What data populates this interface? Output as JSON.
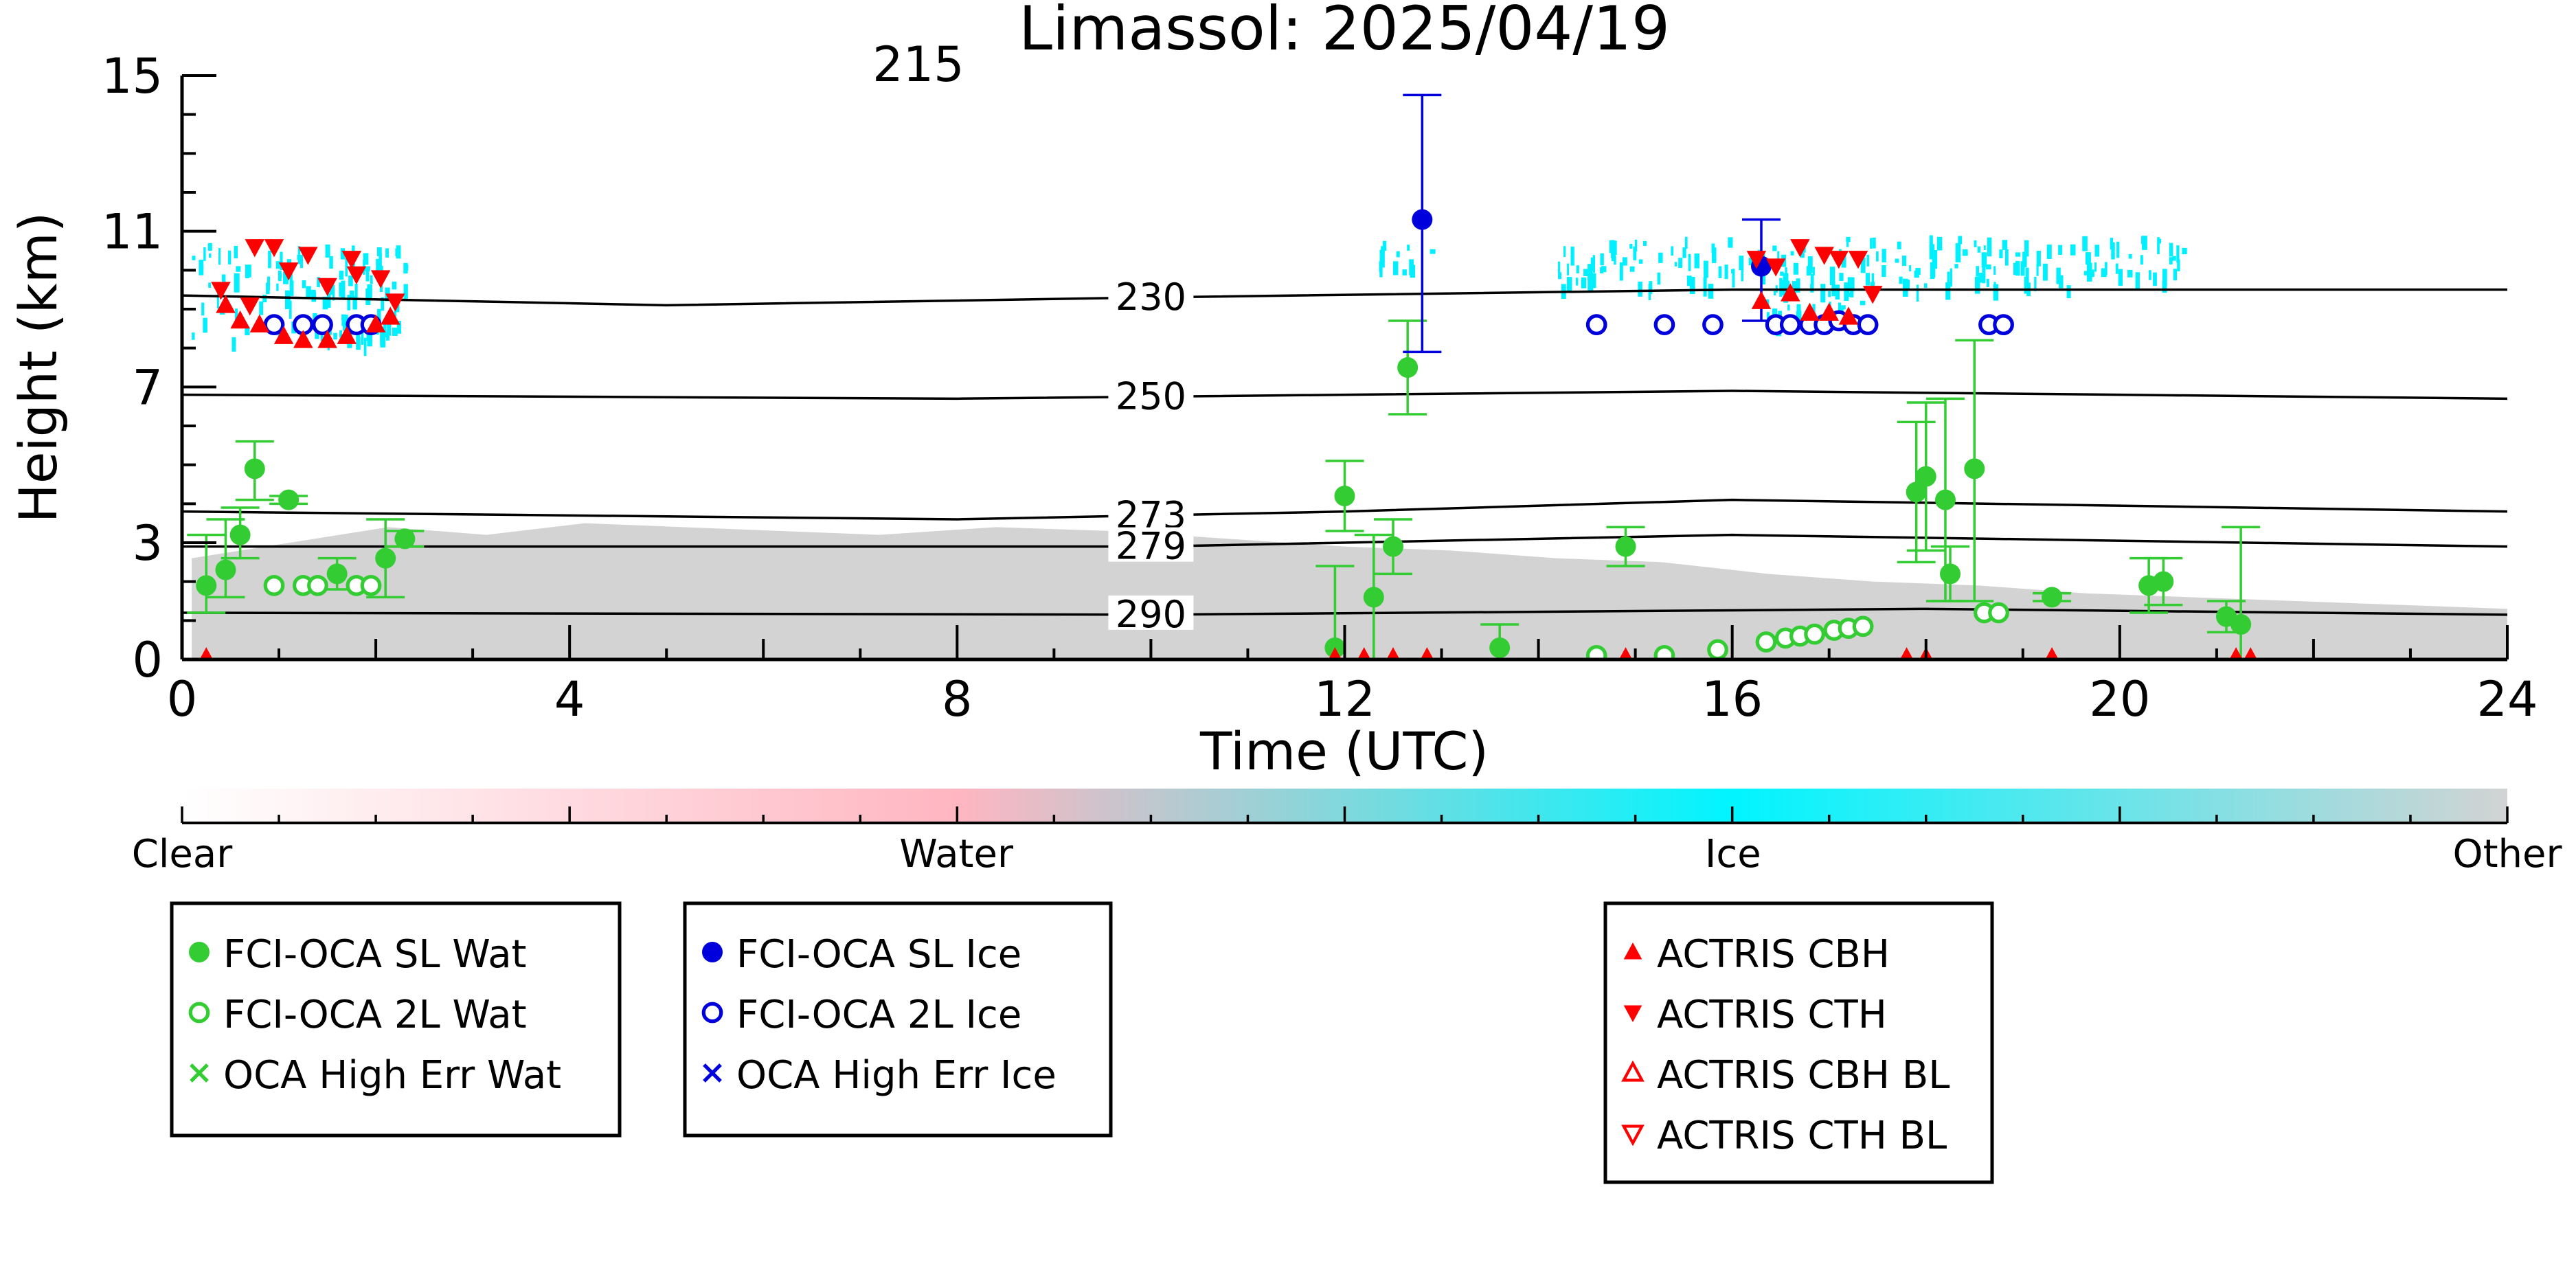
{
  "chart_data": {
    "type": "scatter",
    "title": "Limassol: 2025/04/19",
    "xlabel": "Time (UTC)",
    "ylabel": "Height (km)",
    "xlim": [
      0,
      24
    ],
    "ylim": [
      0,
      15
    ],
    "xticks": [
      "0",
      "4",
      "8",
      "12",
      "16",
      "20",
      "24"
    ],
    "yticks": [
      "0",
      "3",
      "7",
      "11",
      "15"
    ],
    "yticks_values": [
      0,
      3,
      7,
      11,
      15
    ],
    "grid": false,
    "colors": {
      "fci_water": "#33cc33",
      "fci_ice": "#0000dd",
      "actris": "#ff0000",
      "cloud_ice": "#00f0ff",
      "other": "#d3d3d3",
      "isotherm": "#000000"
    },
    "isotherms": [
      {
        "label": "230",
        "label_x": 10.0,
        "points": [
          [
            0,
            9.35
          ],
          [
            5,
            9.1
          ],
          [
            10,
            9.3
          ],
          [
            16,
            9.5
          ],
          [
            24,
            9.5
          ]
        ]
      },
      {
        "label": "250",
        "label_x": 10.0,
        "points": [
          [
            0,
            6.8
          ],
          [
            8,
            6.7
          ],
          [
            16,
            6.9
          ],
          [
            24,
            6.7
          ]
        ]
      },
      {
        "label": "273",
        "label_x": 10.0,
        "points": [
          [
            0,
            3.8
          ],
          [
            8,
            3.6
          ],
          [
            12,
            3.8
          ],
          [
            16,
            4.1
          ],
          [
            24,
            3.8
          ]
        ]
      },
      {
        "label": "279",
        "label_x": 10.0,
        "points": [
          [
            0,
            2.9
          ],
          [
            10,
            2.9
          ],
          [
            16,
            3.2
          ],
          [
            24,
            2.9
          ]
        ]
      },
      {
        "label": "290",
        "label_x": 10.0,
        "points": [
          [
            0,
            1.2
          ],
          [
            10,
            1.15
          ],
          [
            18,
            1.3
          ],
          [
            24,
            1.15
          ]
        ]
      }
    ],
    "extra_label": {
      "text": "215",
      "x": 7.6,
      "y": 15.0
    },
    "background": {
      "other_regions": [
        {
          "x0": 0.1,
          "x1": 7.2,
          "top": [
            2.6,
            3.0,
            3.4,
            3.2,
            3.5,
            3.4,
            3.3,
            3.2
          ]
        },
        {
          "x0": 7.2,
          "x1": 12.0,
          "top": [
            3.2,
            3.4,
            3.3,
            3.1,
            2.9
          ]
        },
        {
          "x0": 12.0,
          "x1": 24.0,
          "top": [
            2.9,
            2.8,
            2.6,
            2.5,
            2.2,
            2.0,
            1.9,
            1.7,
            1.6,
            1.5,
            1.4,
            1.3
          ]
        }
      ],
      "ice_regions": [
        {
          "x0": 0.1,
          "x1": 2.3,
          "y0": 8.2,
          "y1": 10.7
        },
        {
          "x0": 12.3,
          "x1": 12.9,
          "y0": 9.9,
          "y1": 10.8
        },
        {
          "x0": 14.2,
          "x1": 20.7,
          "y0": 9.6,
          "y1": 10.9
        },
        {
          "x0": 16.3,
          "x1": 17.4,
          "y0": 8.6,
          "y1": 10.1
        }
      ]
    },
    "series": [
      {
        "name": "FCI-OCA SL Wat",
        "marker": "filled-circle",
        "color": "#33cc33",
        "points": [
          {
            "x": 0.25,
            "y": 1.9,
            "ylo": 1.2,
            "yhi": 3.2
          },
          {
            "x": 0.45,
            "y": 2.3,
            "ylo": 1.6,
            "yhi": 3.6
          },
          {
            "x": 0.6,
            "y": 3.2,
            "ylo": 2.6,
            "yhi": 3.9
          },
          {
            "x": 0.75,
            "y": 4.9,
            "ylo": 4.1,
            "yhi": 5.6
          },
          {
            "x": 1.1,
            "y": 4.1,
            "ylo": 4.0,
            "yhi": 4.2
          },
          {
            "x": 1.6,
            "y": 2.2,
            "ylo": 1.8,
            "yhi": 2.6
          },
          {
            "x": 2.1,
            "y": 2.6,
            "ylo": 1.6,
            "yhi": 3.6
          },
          {
            "x": 2.3,
            "y": 3.1,
            "ylo": 2.9,
            "yhi": 3.3
          },
          {
            "x": 11.9,
            "y": 0.3,
            "ylo": 0.0,
            "yhi": 2.4
          },
          {
            "x": 12.0,
            "y": 4.2,
            "ylo": 3.3,
            "yhi": 5.1
          },
          {
            "x": 12.3,
            "y": 1.6,
            "ylo": 0.0,
            "yhi": 3.2
          },
          {
            "x": 12.5,
            "y": 2.9,
            "ylo": 2.2,
            "yhi": 3.6
          },
          {
            "x": 12.65,
            "y": 7.5,
            "ylo": 6.3,
            "yhi": 8.7
          },
          {
            "x": 13.6,
            "y": 0.3,
            "ylo": 0.0,
            "yhi": 0.9
          },
          {
            "x": 14.9,
            "y": 2.9,
            "ylo": 2.4,
            "yhi": 3.4
          },
          {
            "x": 17.9,
            "y": 4.3,
            "ylo": 2.5,
            "yhi": 6.1
          },
          {
            "x": 18.0,
            "y": 4.7,
            "ylo": 2.8,
            "yhi": 6.6
          },
          {
            "x": 18.2,
            "y": 4.1,
            "ylo": 1.5,
            "yhi": 6.7
          },
          {
            "x": 18.25,
            "y": 2.2,
            "ylo": 1.5,
            "yhi": 2.9
          },
          {
            "x": 18.5,
            "y": 4.9,
            "ylo": 1.5,
            "yhi": 8.2
          },
          {
            "x": 19.3,
            "y": 1.6,
            "ylo": 1.5,
            "yhi": 1.7
          },
          {
            "x": 20.3,
            "y": 1.9,
            "ylo": 1.2,
            "yhi": 2.6
          },
          {
            "x": 20.45,
            "y": 2.0,
            "ylo": 1.4,
            "yhi": 2.6
          },
          {
            "x": 21.1,
            "y": 1.1,
            "ylo": 0.7,
            "yhi": 1.5
          },
          {
            "x": 21.25,
            "y": 0.9,
            "ylo": 0.0,
            "yhi": 3.4
          }
        ]
      },
      {
        "name": "FCI-OCA 2L Wat",
        "marker": "open-circle",
        "color": "#33cc33",
        "points": [
          {
            "x": 0.95,
            "y": 1.9
          },
          {
            "x": 1.25,
            "y": 1.9
          },
          {
            "x": 1.4,
            "y": 1.9
          },
          {
            "x": 1.8,
            "y": 1.9
          },
          {
            "x": 1.95,
            "y": 1.9
          },
          {
            "x": 14.6,
            "y": 0.1
          },
          {
            "x": 15.3,
            "y": 0.1
          },
          {
            "x": 15.85,
            "y": 0.25
          },
          {
            "x": 16.35,
            "y": 0.45
          },
          {
            "x": 16.55,
            "y": 0.55
          },
          {
            "x": 16.7,
            "y": 0.6
          },
          {
            "x": 16.85,
            "y": 0.65
          },
          {
            "x": 17.05,
            "y": 0.75
          },
          {
            "x": 17.2,
            "y": 0.8
          },
          {
            "x": 17.35,
            "y": 0.85
          },
          {
            "x": 18.6,
            "y": 1.2
          },
          {
            "x": 18.75,
            "y": 1.2
          }
        ]
      },
      {
        "name": "OCA High Err Wat",
        "marker": "x",
        "color": "#33cc33",
        "points": []
      },
      {
        "name": "FCI-OCA SL Ice",
        "marker": "filled-circle",
        "color": "#0000dd",
        "points": [
          {
            "x": 12.8,
            "y": 11.3,
            "ylo": 7.9,
            "yhi": 14.5
          },
          {
            "x": 16.3,
            "y": 10.1,
            "ylo": 8.7,
            "yhi": 11.3
          }
        ]
      },
      {
        "name": "FCI-OCA 2L Ice",
        "marker": "open-circle",
        "color": "#0000dd",
        "points": [
          {
            "x": 0.95,
            "y": 8.6
          },
          {
            "x": 1.25,
            "y": 8.6
          },
          {
            "x": 1.45,
            "y": 8.6
          },
          {
            "x": 1.8,
            "y": 8.6
          },
          {
            "x": 1.95,
            "y": 8.6
          },
          {
            "x": 14.6,
            "y": 8.6
          },
          {
            "x": 15.3,
            "y": 8.6
          },
          {
            "x": 15.8,
            "y": 8.6
          },
          {
            "x": 16.45,
            "y": 8.6
          },
          {
            "x": 16.6,
            "y": 8.6
          },
          {
            "x": 16.8,
            "y": 8.6
          },
          {
            "x": 16.95,
            "y": 8.6
          },
          {
            "x": 17.1,
            "y": 8.7
          },
          {
            "x": 17.25,
            "y": 8.6
          },
          {
            "x": 17.4,
            "y": 8.6
          },
          {
            "x": 18.65,
            "y": 8.6
          },
          {
            "x": 18.8,
            "y": 8.6
          }
        ]
      },
      {
        "name": "OCA High Err Ice",
        "marker": "x",
        "color": "#0000dd",
        "points": []
      },
      {
        "name": "ACTRIS CBH",
        "marker": "triangle-up",
        "color": "#ff0000",
        "points": [
          {
            "x": 0.25,
            "y": 0.05
          },
          {
            "x": 11.9,
            "y": 0.05
          },
          {
            "x": 12.2,
            "y": 0.05
          },
          {
            "x": 12.5,
            "y": 0.05
          },
          {
            "x": 12.85,
            "y": 0.05
          },
          {
            "x": 14.9,
            "y": 0.05
          },
          {
            "x": 17.8,
            "y": 0.05
          },
          {
            "x": 18.0,
            "y": 0.05
          },
          {
            "x": 19.3,
            "y": 0.05
          },
          {
            "x": 21.2,
            "y": 0.05
          },
          {
            "x": 21.35,
            "y": 0.05
          },
          {
            "x": 0.45,
            "y": 9.1
          },
          {
            "x": 0.6,
            "y": 8.7
          },
          {
            "x": 0.8,
            "y": 8.6
          },
          {
            "x": 1.05,
            "y": 8.3
          },
          {
            "x": 1.25,
            "y": 8.2
          },
          {
            "x": 1.5,
            "y": 8.2
          },
          {
            "x": 1.7,
            "y": 8.3
          },
          {
            "x": 2.0,
            "y": 8.6
          },
          {
            "x": 2.15,
            "y": 8.8
          },
          {
            "x": 16.3,
            "y": 9.2
          },
          {
            "x": 16.6,
            "y": 9.4
          },
          {
            "x": 16.8,
            "y": 8.9
          },
          {
            "x": 17.0,
            "y": 8.9
          },
          {
            "x": 17.2,
            "y": 8.8
          }
        ]
      },
      {
        "name": "ACTRIS CTH",
        "marker": "triangle-down",
        "color": "#ff0000",
        "points": [
          {
            "x": 0.4,
            "y": 9.5
          },
          {
            "x": 0.7,
            "y": 9.1
          },
          {
            "x": 0.75,
            "y": 10.6
          },
          {
            "x": 0.95,
            "y": 10.6
          },
          {
            "x": 1.1,
            "y": 10.0
          },
          {
            "x": 1.3,
            "y": 10.4
          },
          {
            "x": 1.5,
            "y": 9.6
          },
          {
            "x": 1.75,
            "y": 10.3
          },
          {
            "x": 1.8,
            "y": 9.9
          },
          {
            "x": 2.05,
            "y": 9.8
          },
          {
            "x": 2.2,
            "y": 9.2
          },
          {
            "x": 16.25,
            "y": 10.3
          },
          {
            "x": 16.45,
            "y": 10.1
          },
          {
            "x": 16.7,
            "y": 10.6
          },
          {
            "x": 16.95,
            "y": 10.4
          },
          {
            "x": 17.1,
            "y": 10.3
          },
          {
            "x": 17.3,
            "y": 10.3
          },
          {
            "x": 17.45,
            "y": 9.4
          }
        ]
      },
      {
        "name": "ACTRIS CBH BL",
        "marker": "open-triangle-up",
        "color": "#ff0000",
        "points": []
      },
      {
        "name": "ACTRIS CTH BL",
        "marker": "open-triangle-down",
        "color": "#ff0000",
        "points": []
      }
    ],
    "colorbar": {
      "labels": [
        {
          "text": "Clear",
          "pos": 0.0
        },
        {
          "text": "Water",
          "pos": 0.333
        },
        {
          "text": "Ice",
          "pos": 0.667
        },
        {
          "text": "Other",
          "pos": 1.0
        }
      ],
      "stops": [
        {
          "pos": 0.0,
          "color": "#ffffff"
        },
        {
          "pos": 0.333,
          "color": "#ffb6c1"
        },
        {
          "pos": 0.5,
          "color": "#80d8dc"
        },
        {
          "pos": 0.667,
          "color": "#00f5ff"
        },
        {
          "pos": 1.0,
          "color": "#d3d3d3"
        }
      ]
    },
    "legends": [
      {
        "entries": [
          {
            "label": "FCI-OCA SL Wat",
            "marker": "filled-circle",
            "color": "#33cc33"
          },
          {
            "label": "FCI-OCA 2L Wat",
            "marker": "open-circle",
            "color": "#33cc33"
          },
          {
            "label": "OCA High Err Wat",
            "marker": "x",
            "color": "#33cc33"
          }
        ]
      },
      {
        "entries": [
          {
            "label": "FCI-OCA SL Ice",
            "marker": "filled-circle",
            "color": "#0000dd"
          },
          {
            "label": "FCI-OCA 2L Ice",
            "marker": "open-circle",
            "color": "#0000dd"
          },
          {
            "label": "OCA High Err Ice",
            "marker": "x",
            "color": "#0000dd"
          }
        ]
      },
      {
        "entries": [
          {
            "label": "ACTRIS CBH",
            "marker": "triangle-up",
            "color": "#ff0000"
          },
          {
            "label": "ACTRIS CTH",
            "marker": "triangle-down",
            "color": "#ff0000"
          },
          {
            "label": "ACTRIS CBH BL",
            "marker": "open-triangle-up",
            "color": "#ff0000"
          },
          {
            "label": "ACTRIS CTH BL",
            "marker": "open-triangle-down",
            "color": "#ff0000"
          }
        ]
      }
    ]
  }
}
